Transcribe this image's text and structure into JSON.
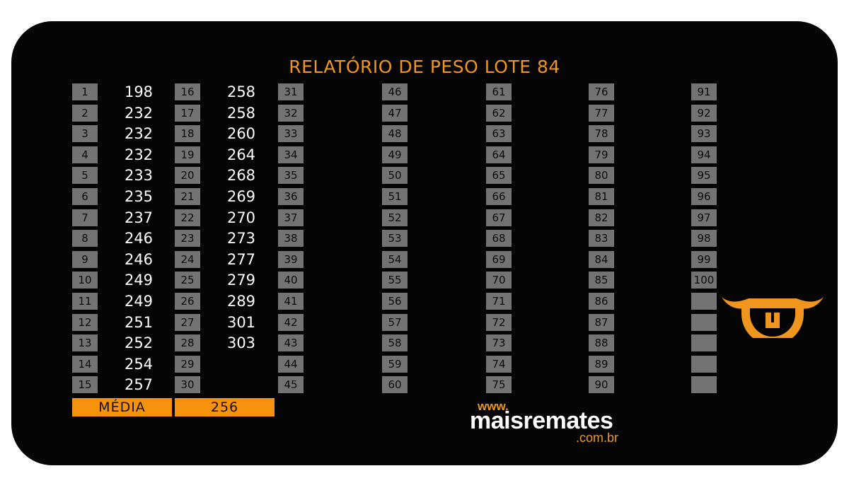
{
  "report": {
    "title": "RELATÓRIO DE PESO LOTE 84",
    "average_label": "MÉDIA",
    "average_value": "256"
  },
  "animals": [
    {
      "n": "1",
      "w": "198"
    },
    {
      "n": "2",
      "w": "232"
    },
    {
      "n": "3",
      "w": "232"
    },
    {
      "n": "4",
      "w": "232"
    },
    {
      "n": "5",
      "w": "233"
    },
    {
      "n": "6",
      "w": "235"
    },
    {
      "n": "7",
      "w": "237"
    },
    {
      "n": "8",
      "w": "246"
    },
    {
      "n": "9",
      "w": "246"
    },
    {
      "n": "10",
      "w": "249"
    },
    {
      "n": "11",
      "w": "249"
    },
    {
      "n": "12",
      "w": "251"
    },
    {
      "n": "13",
      "w": "252"
    },
    {
      "n": "14",
      "w": "254"
    },
    {
      "n": "15",
      "w": "257"
    },
    {
      "n": "16",
      "w": "258"
    },
    {
      "n": "17",
      "w": "258"
    },
    {
      "n": "18",
      "w": "260"
    },
    {
      "n": "19",
      "w": "264"
    },
    {
      "n": "20",
      "w": "268"
    },
    {
      "n": "21",
      "w": "269"
    },
    {
      "n": "22",
      "w": "270"
    },
    {
      "n": "23",
      "w": "273"
    },
    {
      "n": "24",
      "w": "277"
    },
    {
      "n": "25",
      "w": "279"
    },
    {
      "n": "26",
      "w": "289"
    },
    {
      "n": "27",
      "w": "301"
    },
    {
      "n": "28",
      "w": "303"
    },
    {
      "n": "29",
      "w": ""
    },
    {
      "n": "30",
      "w": ""
    },
    {
      "n": "31",
      "w": ""
    },
    {
      "n": "32",
      "w": ""
    },
    {
      "n": "33",
      "w": ""
    },
    {
      "n": "34",
      "w": ""
    },
    {
      "n": "35",
      "w": ""
    },
    {
      "n": "36",
      "w": ""
    },
    {
      "n": "37",
      "w": ""
    },
    {
      "n": "38",
      "w": ""
    },
    {
      "n": "39",
      "w": ""
    },
    {
      "n": "40",
      "w": ""
    },
    {
      "n": "41",
      "w": ""
    },
    {
      "n": "42",
      "w": ""
    },
    {
      "n": "43",
      "w": ""
    },
    {
      "n": "44",
      "w": ""
    },
    {
      "n": "45",
      "w": ""
    },
    {
      "n": "46",
      "w": ""
    },
    {
      "n": "47",
      "w": ""
    },
    {
      "n": "48",
      "w": ""
    },
    {
      "n": "49",
      "w": ""
    },
    {
      "n": "50",
      "w": ""
    },
    {
      "n": "51",
      "w": ""
    },
    {
      "n": "52",
      "w": ""
    },
    {
      "n": "53",
      "w": ""
    },
    {
      "n": "54",
      "w": ""
    },
    {
      "n": "55",
      "w": ""
    },
    {
      "n": "56",
      "w": ""
    },
    {
      "n": "57",
      "w": ""
    },
    {
      "n": "58",
      "w": ""
    },
    {
      "n": "59",
      "w": ""
    },
    {
      "n": "60",
      "w": ""
    },
    {
      "n": "61",
      "w": ""
    },
    {
      "n": "62",
      "w": ""
    },
    {
      "n": "63",
      "w": ""
    },
    {
      "n": "64",
      "w": ""
    },
    {
      "n": "65",
      "w": ""
    },
    {
      "n": "66",
      "w": ""
    },
    {
      "n": "67",
      "w": ""
    },
    {
      "n": "68",
      "w": ""
    },
    {
      "n": "69",
      "w": ""
    },
    {
      "n": "70",
      "w": ""
    },
    {
      "n": "71",
      "w": ""
    },
    {
      "n": "72",
      "w": ""
    },
    {
      "n": "73",
      "w": ""
    },
    {
      "n": "74",
      "w": ""
    },
    {
      "n": "75",
      "w": ""
    },
    {
      "n": "76",
      "w": ""
    },
    {
      "n": "77",
      "w": ""
    },
    {
      "n": "78",
      "w": ""
    },
    {
      "n": "79",
      "w": ""
    },
    {
      "n": "80",
      "w": ""
    },
    {
      "n": "81",
      "w": ""
    },
    {
      "n": "82",
      "w": ""
    },
    {
      "n": "83",
      "w": ""
    },
    {
      "n": "84",
      "w": ""
    },
    {
      "n": "85",
      "w": ""
    },
    {
      "n": "86",
      "w": ""
    },
    {
      "n": "87",
      "w": ""
    },
    {
      "n": "88",
      "w": ""
    },
    {
      "n": "89",
      "w": ""
    },
    {
      "n": "90",
      "w": ""
    },
    {
      "n": "91",
      "w": ""
    },
    {
      "n": "92",
      "w": ""
    },
    {
      "n": "93",
      "w": ""
    },
    {
      "n": "94",
      "w": ""
    },
    {
      "n": "95",
      "w": ""
    },
    {
      "n": "96",
      "w": ""
    },
    {
      "n": "97",
      "w": ""
    },
    {
      "n": "98",
      "w": ""
    },
    {
      "n": "99",
      "w": ""
    },
    {
      "n": "100",
      "w": ""
    },
    {
      "n": "",
      "w": ""
    },
    {
      "n": "",
      "w": ""
    },
    {
      "n": "",
      "w": ""
    },
    {
      "n": "",
      "w": ""
    },
    {
      "n": "",
      "w": ""
    }
  ],
  "brand": {
    "www": "www.",
    "name": "maisremates",
    "tld": ".com.br",
    "logo_icon": "bull-head-icon"
  },
  "colors": {
    "accent": "#f0961e",
    "average_bar": "#f7920f",
    "number_cell": "#737373",
    "card_background": "#050505"
  }
}
